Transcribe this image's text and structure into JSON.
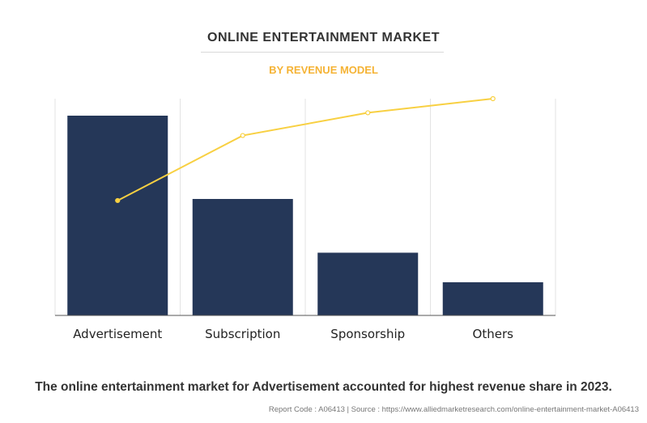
{
  "chart_data": {
    "type": "bar",
    "title": "ONLINE ENTERTAINMENT MARKET",
    "subtitle": "BY REVENUE MODEL",
    "categories": [
      "Advertisement",
      "Subscription",
      "Sponsorship",
      "Others"
    ],
    "values": [
      100,
      58.3,
      31.4,
      16.6
    ],
    "line_values": [
      53,
      83,
      93.5,
      100
    ],
    "ylim": [
      0,
      100
    ],
    "grid": "vertical",
    "colors": {
      "bar": "#253758",
      "line": "#f8d042"
    }
  },
  "caption": "The online entertainment market for Advertisement accounted for highest revenue share in 2023.",
  "footer": "Report Code : A06413  |  Source : https://www.alliedmarketresearch.com/online-entertainment-market-A06413"
}
